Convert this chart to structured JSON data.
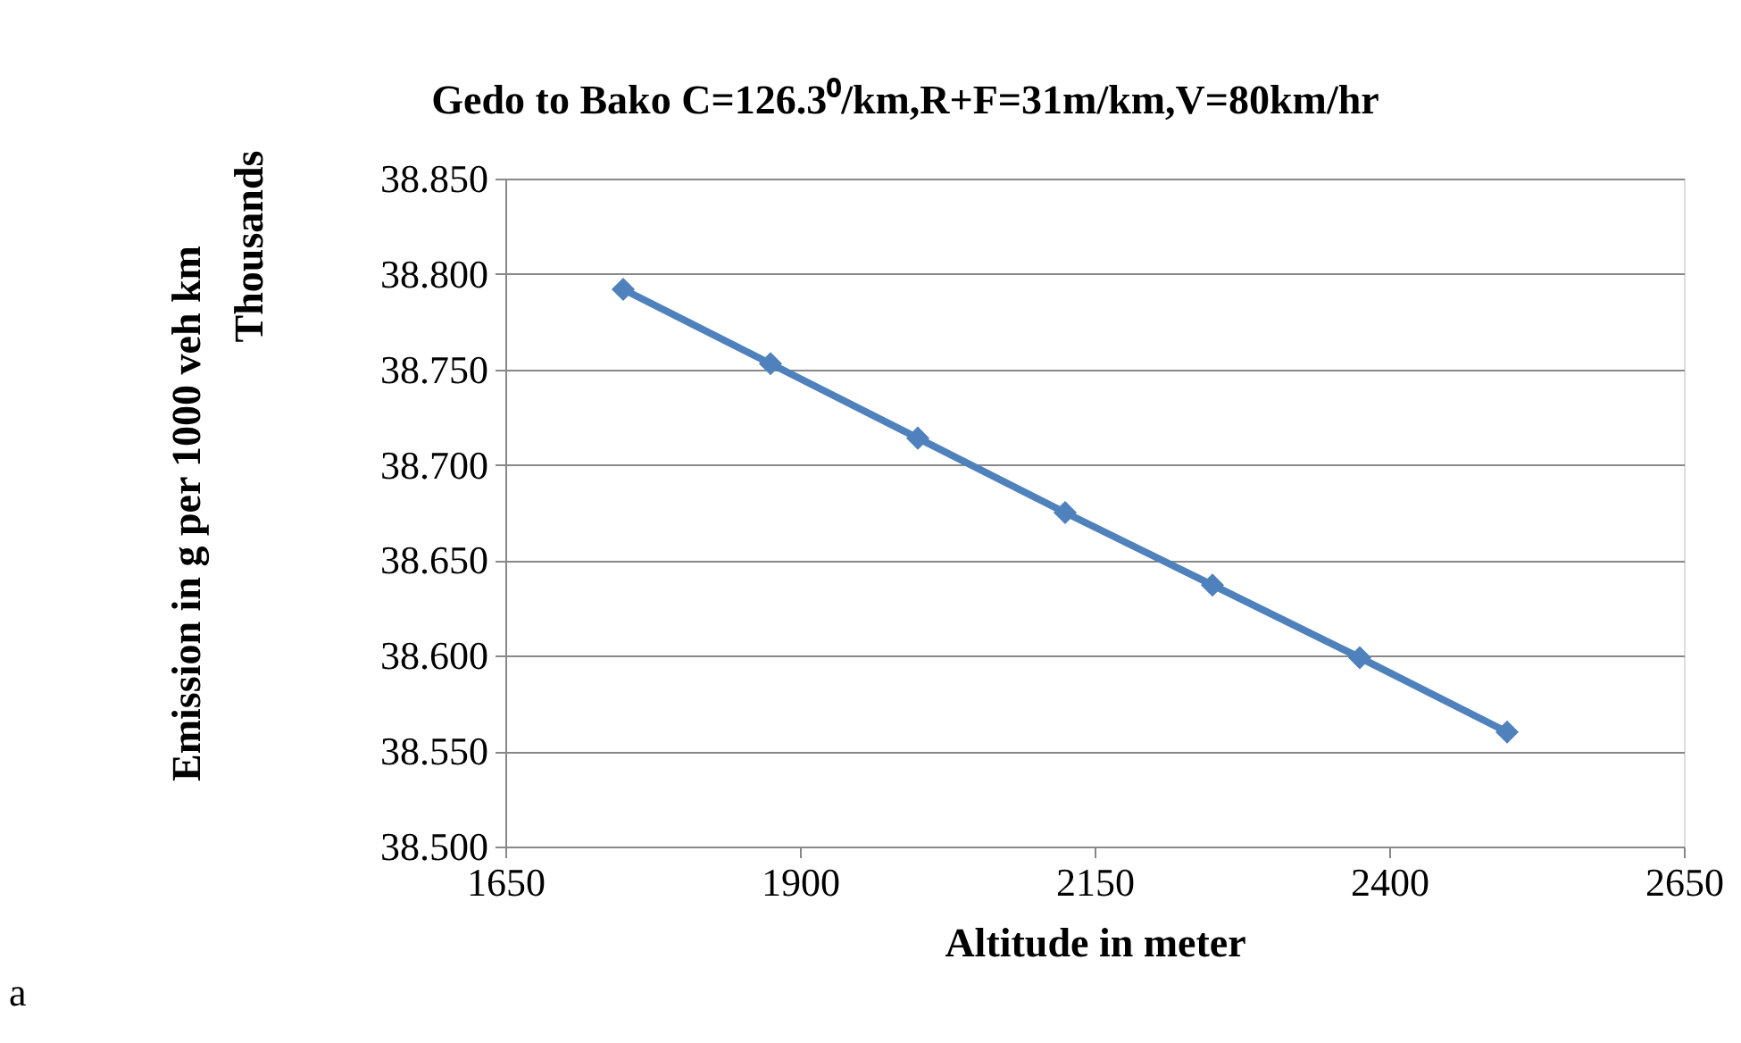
{
  "chart_data": {
    "type": "line",
    "title": "Gedo to Bako C=126.3⁰/km,R+F=31m/km,V=80km/hr",
    "xlabel": "Altitude in meter",
    "ylabel": "Emission in g per 1000 veh km",
    "annotations": [
      "Thousands",
      "a"
    ],
    "x": [
      1750,
      1875,
      2000,
      2125,
      2250,
      2375,
      2500
    ],
    "series": [
      {
        "color": "#4f81bd",
        "values": [
          38.792,
          38.753,
          38.714,
          38.675,
          38.637,
          38.599,
          38.56
        ]
      }
    ],
    "xlim": [
      1650,
      2650
    ],
    "xticks": [
      1650,
      1900,
      2150,
      2400,
      2650
    ],
    "ylim": [
      38.5,
      38.85
    ],
    "yticks": [
      {
        "value": 38.5,
        "label": "38.500"
      },
      {
        "value": 38.55,
        "label": "38.550"
      },
      {
        "value": 38.6,
        "label": "38.600"
      },
      {
        "value": 38.65,
        "label": "38.650"
      },
      {
        "value": 38.7,
        "label": "38.700"
      },
      {
        "value": 38.75,
        "label": "38.750"
      },
      {
        "value": 38.8,
        "label": "38.800"
      },
      {
        "value": 38.85,
        "label": "38.850"
      }
    ],
    "grid": "y",
    "marker": "diamond",
    "line_style": "solid"
  }
}
